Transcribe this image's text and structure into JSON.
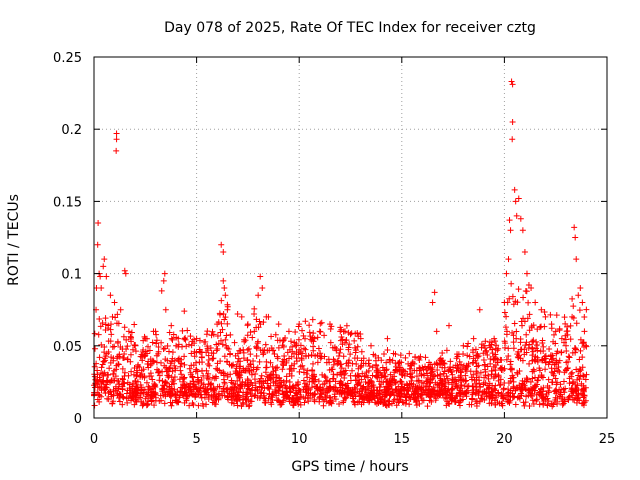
{
  "chart_data": {
    "type": "scatter",
    "title": "Day 078 of 2025, Rate Of TEC Index for receiver cztg",
    "xlabel": "GPS time / hours",
    "ylabel": "ROTI / TECUs",
    "xlim": [
      0,
      25
    ],
    "ylim": [
      0,
      0.25
    ],
    "xticks": [
      0,
      5,
      10,
      15,
      20,
      25
    ],
    "xtick_labels": [
      "0",
      "5",
      "10",
      "15",
      "20",
      "25"
    ],
    "yticks": [
      0,
      0.05,
      0.1,
      0.15,
      0.2,
      0.25
    ],
    "ytick_labels": [
      "0",
      "0.05",
      "0.1",
      "0.15",
      "0.2",
      "0.25"
    ],
    "grid": true,
    "marker": "+",
    "marker_color": "#ff0000",
    "series": [
      {
        "name": "ROTI",
        "note": "dense cloud of several thousand points between 0 and 24 h; representative sample below",
        "points": [
          [
            0.05,
            0.048
          ],
          [
            0.1,
            0.075
          ],
          [
            0.12,
            0.09
          ],
          [
            0.18,
            0.12
          ],
          [
            0.2,
            0.135
          ],
          [
            0.25,
            0.1
          ],
          [
            0.3,
            0.098
          ],
          [
            0.35,
            0.09
          ],
          [
            0.45,
            0.105
          ],
          [
            0.5,
            0.11
          ],
          [
            0.6,
            0.098
          ],
          [
            0.8,
            0.085
          ],
          [
            0.9,
            0.07
          ],
          [
            1.0,
            0.08
          ],
          [
            1.1,
            0.197
          ],
          [
            1.1,
            0.193
          ],
          [
            1.08,
            0.185
          ],
          [
            1.3,
            0.075
          ],
          [
            1.5,
            0.102
          ],
          [
            1.55,
            0.1
          ],
          [
            1.7,
            0.06
          ],
          [
            2.0,
            0.05
          ],
          [
            2.5,
            0.055
          ],
          [
            2.9,
            0.06
          ],
          [
            3.0,
            0.06
          ],
          [
            3.3,
            0.088
          ],
          [
            3.4,
            0.095
          ],
          [
            3.45,
            0.1
          ],
          [
            3.5,
            0.075
          ],
          [
            4.0,
            0.05
          ],
          [
            4.4,
            0.074
          ],
          [
            5.0,
            0.055
          ],
          [
            5.5,
            0.058
          ],
          [
            6.0,
            0.065
          ],
          [
            6.2,
            0.12
          ],
          [
            6.3,
            0.115
          ],
          [
            6.3,
            0.095
          ],
          [
            6.35,
            0.09
          ],
          [
            6.4,
            0.085
          ],
          [
            6.5,
            0.075
          ],
          [
            7.0,
            0.072
          ],
          [
            7.2,
            0.07
          ],
          [
            7.5,
            0.065
          ],
          [
            7.8,
            0.072
          ],
          [
            8.0,
            0.085
          ],
          [
            8.1,
            0.098
          ],
          [
            8.2,
            0.09
          ],
          [
            8.5,
            0.07
          ],
          [
            9.0,
            0.065
          ],
          [
            9.5,
            0.06
          ],
          [
            10.0,
            0.065
          ],
          [
            10.3,
            0.067
          ],
          [
            11.0,
            0.06
          ],
          [
            11.5,
            0.065
          ],
          [
            12.0,
            0.06
          ],
          [
            12.5,
            0.058
          ],
          [
            13.0,
            0.055
          ],
          [
            13.5,
            0.05
          ],
          [
            14.0,
            0.04
          ],
          [
            14.3,
            0.055
          ],
          [
            15.0,
            0.03
          ],
          [
            15.5,
            0.028
          ],
          [
            16.0,
            0.035
          ],
          [
            16.5,
            0.08
          ],
          [
            16.6,
            0.087
          ],
          [
            16.7,
            0.06
          ],
          [
            17.0,
            0.04
          ],
          [
            17.3,
            0.064
          ],
          [
            17.5,
            0.035
          ],
          [
            18.0,
            0.05
          ],
          [
            18.5,
            0.055
          ],
          [
            18.8,
            0.075
          ],
          [
            19.0,
            0.05
          ],
          [
            19.5,
            0.055
          ],
          [
            20.0,
            0.08
          ],
          [
            20.1,
            0.1
          ],
          [
            20.2,
            0.11
          ],
          [
            20.25,
            0.137
          ],
          [
            20.3,
            0.13
          ],
          [
            20.35,
            0.233
          ],
          [
            20.4,
            0.231
          ],
          [
            20.4,
            0.205
          ],
          [
            20.38,
            0.193
          ],
          [
            20.5,
            0.158
          ],
          [
            20.55,
            0.15
          ],
          [
            20.6,
            0.14
          ],
          [
            20.7,
            0.152
          ],
          [
            20.8,
            0.138
          ],
          [
            20.9,
            0.13
          ],
          [
            21.0,
            0.115
          ],
          [
            21.1,
            0.1
          ],
          [
            21.3,
            0.09
          ],
          [
            21.5,
            0.08
          ],
          [
            21.8,
            0.075
          ],
          [
            22.0,
            0.07
          ],
          [
            22.3,
            0.065
          ],
          [
            22.5,
            0.06
          ],
          [
            22.8,
            0.055
          ],
          [
            23.0,
            0.05
          ],
          [
            23.3,
            0.07
          ],
          [
            23.4,
            0.132
          ],
          [
            23.45,
            0.125
          ],
          [
            23.5,
            0.11
          ],
          [
            23.6,
            0.085
          ],
          [
            23.7,
            0.09
          ],
          [
            23.8,
            0.08
          ],
          [
            23.9,
            0.06
          ],
          [
            24.0,
            0.03
          ]
        ]
      }
    ]
  }
}
